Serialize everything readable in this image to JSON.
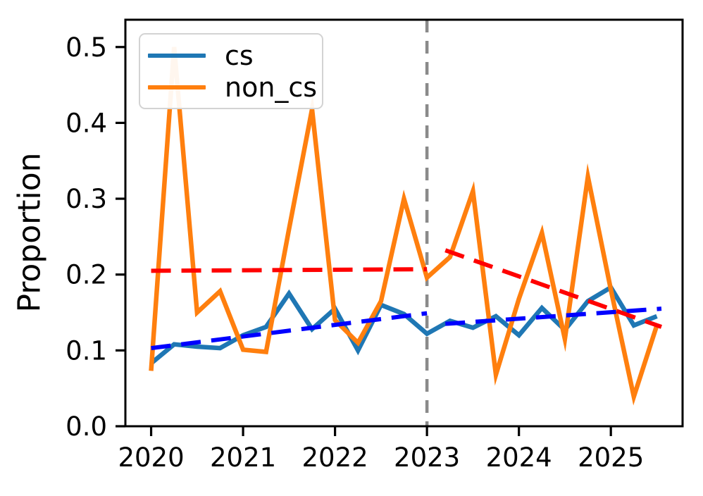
{
  "chart_data": {
    "type": "line",
    "title": "",
    "xlabel": "",
    "ylabel": "Proportion",
    "xlim": [
      2019.72,
      2025.78
    ],
    "ylim": [
      0,
      0.536
    ],
    "grid": false,
    "x_ticks": [
      2020,
      2021,
      2022,
      2023,
      2024,
      2025
    ],
    "x_tick_labels": [
      "2020",
      "2021",
      "2022",
      "2023",
      "2024",
      "2025"
    ],
    "y_ticks": [
      0.0,
      0.1,
      0.2,
      0.3,
      0.4,
      0.5
    ],
    "y_tick_labels": [
      "0.0",
      "0.1",
      "0.2",
      "0.3",
      "0.4",
      "0.5"
    ],
    "legend": {
      "position": "upper-left",
      "entries": [
        {
          "label": "cs",
          "color": "#1f77b4"
        },
        {
          "label": "non_cs",
          "color": "#ff7f0e"
        }
      ]
    },
    "x": [
      2020.0,
      2020.25,
      2020.5,
      2020.75,
      2021.0,
      2021.25,
      2021.5,
      2021.75,
      2022.0,
      2022.25,
      2022.5,
      2022.75,
      2023.0,
      2023.25,
      2023.5,
      2023.75,
      2024.0,
      2024.25,
      2024.5,
      2024.75,
      2025.0,
      2025.25,
      2025.5
    ],
    "series": [
      {
        "name": "cs",
        "color": "#1f77b4",
        "values": [
          0.083,
          0.108,
          0.105,
          0.103,
          0.12,
          0.131,
          0.175,
          0.128,
          0.155,
          0.1,
          0.16,
          0.148,
          0.122,
          0.139,
          0.13,
          0.145,
          0.12,
          0.156,
          0.127,
          0.165,
          0.183,
          0.133,
          0.145
        ]
      },
      {
        "name": "non_cs",
        "color": "#ff7f0e",
        "values": [
          0.073,
          0.5,
          0.15,
          0.178,
          0.101,
          0.098,
          0.26,
          0.418,
          0.14,
          0.11,
          0.165,
          0.3,
          0.196,
          0.223,
          0.31,
          0.068,
          0.168,
          0.255,
          0.115,
          0.329,
          0.18,
          0.039,
          0.133
        ]
      }
    ],
    "trend_lines": [
      {
        "name": "cs_trend_pre2023",
        "color": "#0000ff",
        "style": "dashed",
        "x": [
          2020.0,
          2023.0
        ],
        "y": [
          0.103,
          0.149
        ]
      },
      {
        "name": "cs_trend_post2023",
        "color": "#0000ff",
        "style": "dashed",
        "x": [
          2023.2,
          2025.55
        ],
        "y": [
          0.135,
          0.155
        ]
      },
      {
        "name": "non_cs_trend_pre2023",
        "color": "#ff0000",
        "style": "dashed",
        "x": [
          2020.0,
          2023.0
        ],
        "y": [
          0.205,
          0.207
        ]
      },
      {
        "name": "non_cs_trend_post2023",
        "color": "#ff0000",
        "style": "dashed",
        "x": [
          2023.2,
          2025.55
        ],
        "y": [
          0.232,
          0.131
        ]
      }
    ],
    "vline": {
      "x": 2023,
      "color": "#8a8a8a",
      "style": "dashed"
    }
  }
}
